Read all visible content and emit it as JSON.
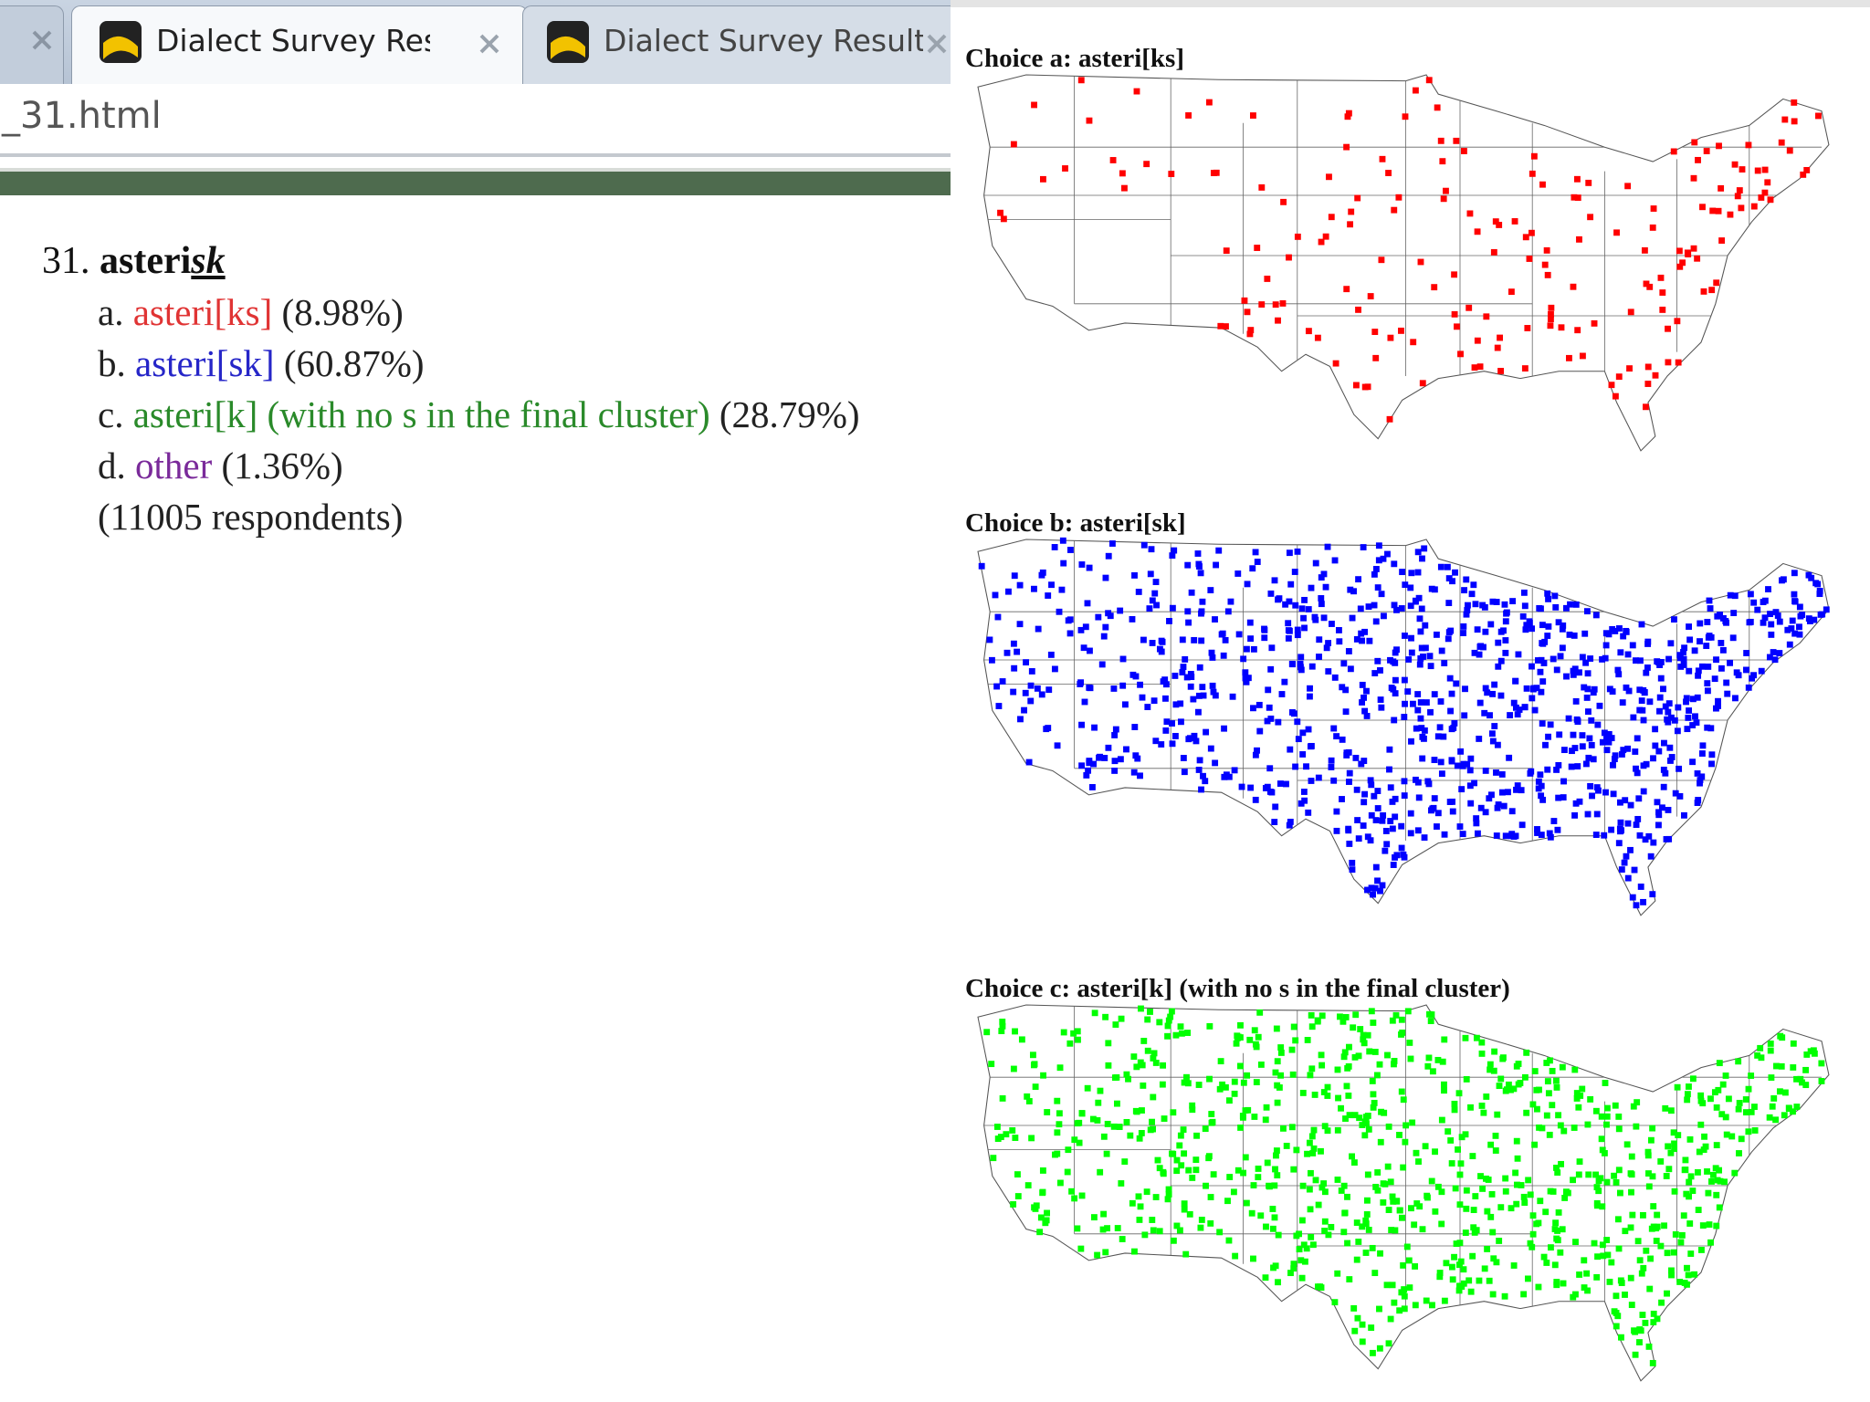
{
  "browser": {
    "tabs": [
      "Dialect Survey Results",
      "Dialect Survey Results"
    ],
    "url": "_31.html"
  },
  "question": {
    "number": "31.",
    "word_plain": "asteri",
    "word_emph": "sk",
    "choices": [
      {
        "letter": "a.",
        "label": "asteri[ks]",
        "percent": "(8.98%)",
        "color": "#e03434"
      },
      {
        "letter": "b.",
        "label": "asteri[sk]",
        "percent": "(60.87%)",
        "color": "#2626c8"
      },
      {
        "letter": "c.",
        "label": "asteri[k] (with no s in the final cluster)",
        "percent": "(28.79%)",
        "color": "#2a8a2a"
      },
      {
        "letter": "d.",
        "label": "other",
        "percent": "(1.36%)",
        "color": "#7a2a9a"
      }
    ],
    "respondents": "(11005 respondents)"
  },
  "maps": [
    {
      "title": "Choice a: asteri[ks]",
      "color": "#ff0000"
    },
    {
      "title": "Choice b: asteri[sk]",
      "color": "#0000ff"
    },
    {
      "title": "Choice c: asteri[k] (with no s in the final cluster)",
      "color": "#00ff00"
    }
  ]
}
